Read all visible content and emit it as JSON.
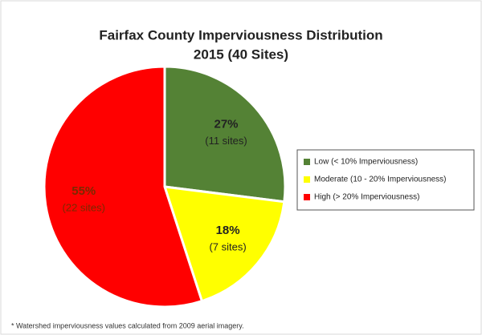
{
  "chart_data": {
    "type": "pie",
    "title": "Fairfax County Imperviousness Distribution",
    "subtitle": "2015 (40 Sites)",
    "categories": [
      "Low (< 10% Imperviousness)",
      "Moderate (10 - 20% Imperviousness)",
      "High (> 20% Imperviousness)"
    ],
    "values": [
      27,
      18,
      55
    ],
    "value_labels": [
      "27%",
      "18%",
      "55%"
    ],
    "site_labels": [
      "(11 sites)",
      "(7 sites)",
      "(22 sites)"
    ],
    "colors": [
      "#548235",
      "#ffff00",
      "#ff0000"
    ],
    "legend": "right",
    "footnote": "* Watershed imperviousness values calculated from 2009 aerial imagery."
  }
}
